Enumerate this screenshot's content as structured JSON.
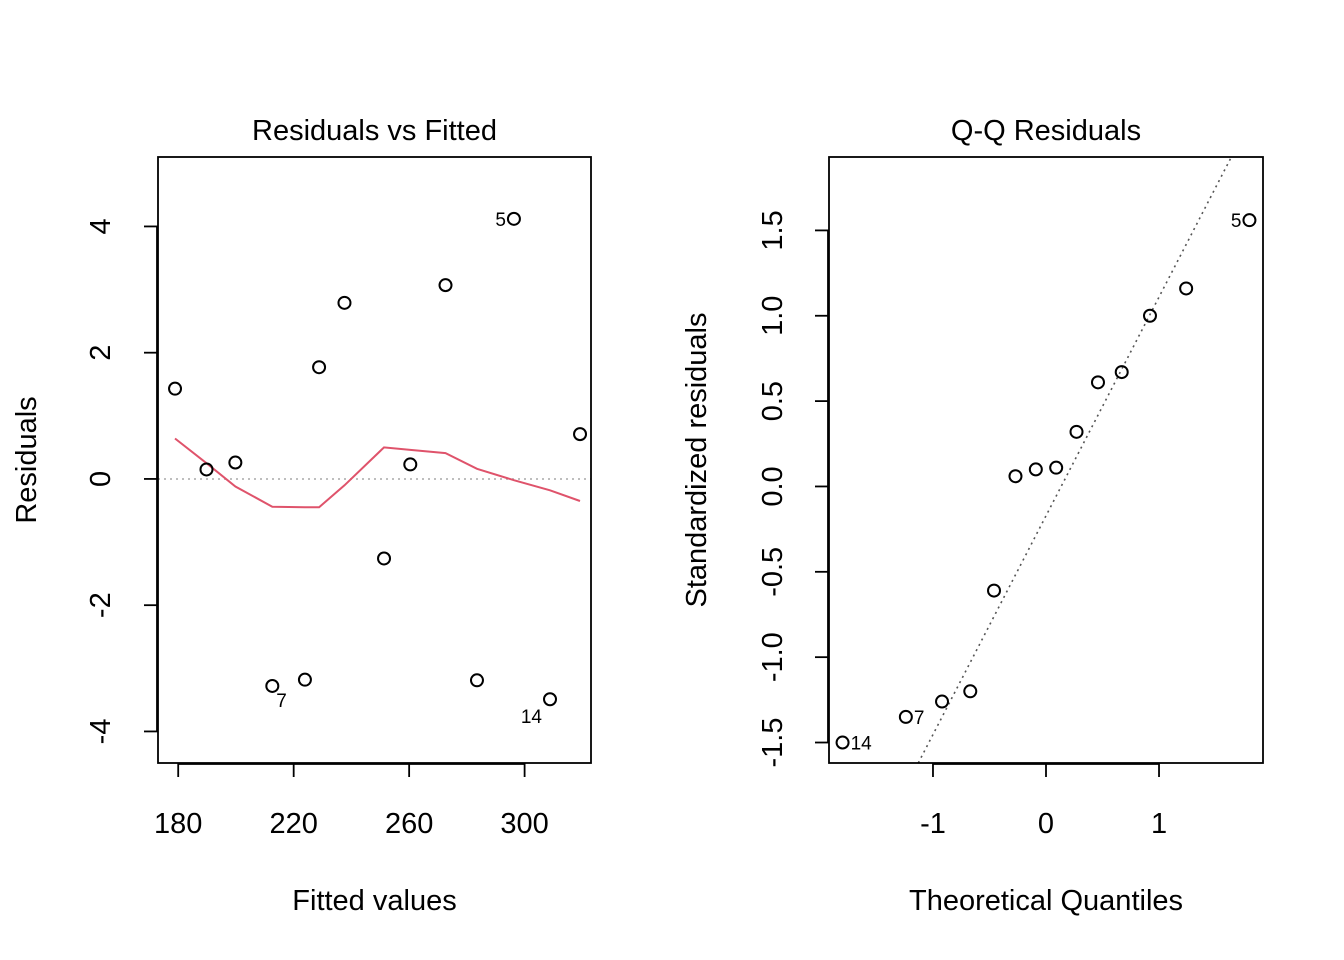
{
  "chart_data": [
    {
      "type": "scatter",
      "title": "Residuals vs Fitted",
      "xlabel": "Fitted values",
      "ylabel": "Residuals",
      "xlim": [
        173,
        323
      ],
      "ylim": [
        -4.5,
        5.1
      ],
      "xticks": [
        180,
        220,
        260,
        300
      ],
      "yticks": [
        -4,
        -2,
        0,
        2,
        4
      ],
      "tick_labels_x": [
        "180",
        "220",
        "260",
        "300"
      ],
      "tick_labels_y": [
        "-4",
        "-2",
        "0",
        "2",
        "4"
      ],
      "colors": {
        "smooth": "#DF536B",
        "reference": "#BEBEBE",
        "points": "#000000"
      },
      "reference_line_y": 0,
      "points": [
        {
          "x": 178.9,
          "y": 1.43
        },
        {
          "x": 189.8,
          "y": 0.15
        },
        {
          "x": 199.8,
          "y": 0.26
        },
        {
          "x": 212.6,
          "y": -3.28
        },
        {
          "x": 223.9,
          "y": -3.18
        },
        {
          "x": 228.8,
          "y": 1.77
        },
        {
          "x": 237.6,
          "y": 2.79
        },
        {
          "x": 251.3,
          "y": -1.26
        },
        {
          "x": 260.4,
          "y": 0.23
        },
        {
          "x": 272.6,
          "y": 3.07
        },
        {
          "x": 283.5,
          "y": -3.19
        },
        {
          "x": 296.3,
          "y": 4.12
        },
        {
          "x": 308.8,
          "y": -3.49
        },
        {
          "x": 319.2,
          "y": 0.71
        }
      ],
      "smooth": [
        {
          "x": 178.9,
          "y": 0.64
        },
        {
          "x": 189.8,
          "y": 0.25
        },
        {
          "x": 199.8,
          "y": -0.12
        },
        {
          "x": 212.6,
          "y": -0.44
        },
        {
          "x": 223.9,
          "y": -0.45
        },
        {
          "x": 228.8,
          "y": -0.45
        },
        {
          "x": 237.6,
          "y": -0.1
        },
        {
          "x": 251.3,
          "y": 0.5
        },
        {
          "x": 260.4,
          "y": 0.46
        },
        {
          "x": 272.6,
          "y": 0.41
        },
        {
          "x": 283.5,
          "y": 0.16
        },
        {
          "x": 296.3,
          "y": -0.02
        },
        {
          "x": 308.8,
          "y": -0.18
        },
        {
          "x": 319.2,
          "y": -0.35
        }
      ],
      "labels": [
        {
          "text": "5",
          "x": 296.3,
          "y": 4.12
        },
        {
          "text": "7",
          "x": 212.6,
          "y": -3.28
        },
        {
          "text": "14",
          "x": 308.8,
          "y": -3.49
        }
      ]
    },
    {
      "type": "scatter",
      "title": "Q-Q Residuals",
      "xlabel": "Theoretical Quantiles",
      "ylabel": "Standardized residuals",
      "xlim": [
        -1.92,
        1.92
      ],
      "ylim": [
        -1.62,
        1.93
      ],
      "xticks": [
        -1,
        0,
        1
      ],
      "yticks": [
        -1.5,
        -1.0,
        -0.5,
        0.0,
        0.5,
        1.0,
        1.5
      ],
      "tick_labels_x": [
        "-1",
        "0",
        "1"
      ],
      "tick_labels_y": [
        "-1.5",
        "-1.0",
        "-0.5",
        "0.0",
        "0.5",
        "1.0",
        "1.5"
      ],
      "colors": {
        "reference": "#555555",
        "points": "#000000"
      },
      "reference_line": [
        {
          "x": -1.13,
          "y": -1.62
        },
        {
          "x": 1.64,
          "y": 1.93
        }
      ],
      "points": [
        {
          "x": -1.8,
          "y": -1.5
        },
        {
          "x": -1.24,
          "y": -1.35
        },
        {
          "x": -0.92,
          "y": -1.26
        },
        {
          "x": -0.67,
          "y": -1.2
        },
        {
          "x": -0.46,
          "y": -0.61
        },
        {
          "x": -0.27,
          "y": 0.06
        },
        {
          "x": -0.09,
          "y": 0.1
        },
        {
          "x": 0.09,
          "y": 0.11
        },
        {
          "x": 0.27,
          "y": 0.32
        },
        {
          "x": 0.46,
          "y": 0.61
        },
        {
          "x": 0.67,
          "y": 0.67
        },
        {
          "x": 0.92,
          "y": 1.0
        },
        {
          "x": 1.24,
          "y": 1.16
        },
        {
          "x": 1.8,
          "y": 1.56
        }
      ],
      "labels": [
        {
          "text": "5",
          "x": 1.8,
          "y": 1.56
        },
        {
          "text": "7",
          "x": -1.24,
          "y": -1.35
        },
        {
          "text": "14",
          "x": -1.8,
          "y": -1.5
        }
      ]
    }
  ]
}
